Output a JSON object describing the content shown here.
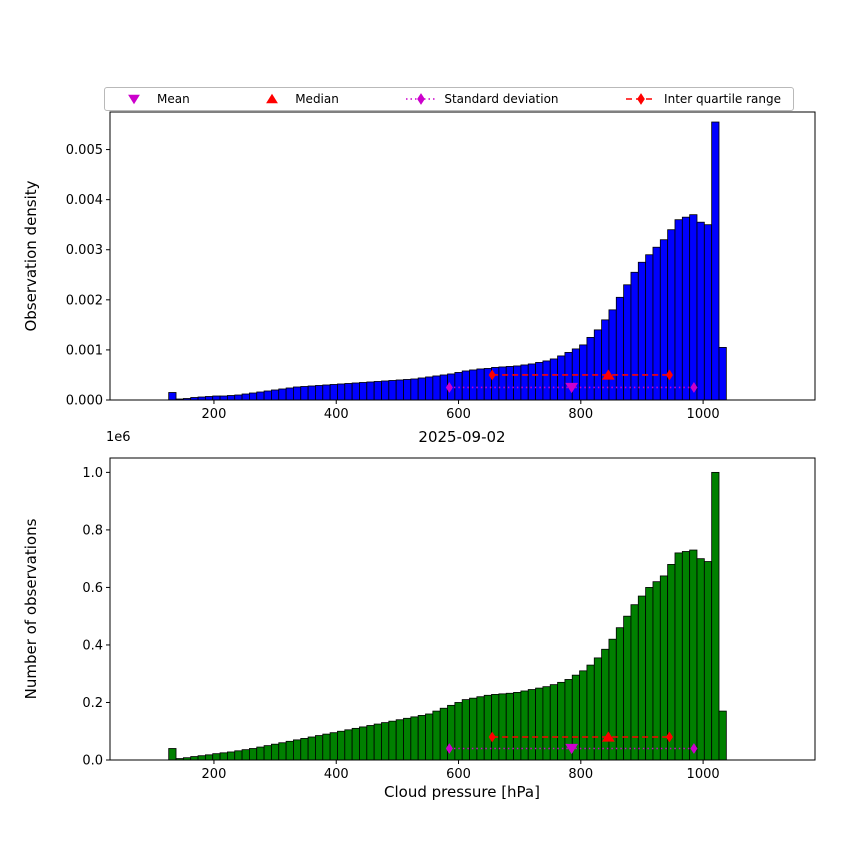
{
  "legend": {
    "items": [
      {
        "label": "Mean",
        "marker": "triangle-down",
        "color": "#cc00cc",
        "line": null
      },
      {
        "label": "Median",
        "marker": "triangle-up",
        "color": "#ff0000",
        "line": null
      },
      {
        "label": "Standard deviation",
        "marker": "diamond",
        "color": "#cc00cc",
        "line": "dotted"
      },
      {
        "label": "Inter quartile range",
        "marker": "diamond",
        "color": "#ff0000",
        "line": "dashed"
      }
    ]
  },
  "chart_data": [
    {
      "type": "bar",
      "title": "",
      "xlabel": "",
      "ylabel": "Observation density",
      "bar_color": "#0000ff",
      "bar_edge": "#000000",
      "bin_start": 126,
      "bin_width": 12,
      "values": [
        0.00015,
        2e-05,
        3e-05,
        5e-05,
        6e-05,
        7e-05,
        8e-05,
        8e-05,
        9e-05,
        0.0001,
        0.00012,
        0.00014,
        0.00016,
        0.00018,
        0.0002,
        0.00022,
        0.00024,
        0.00026,
        0.00027,
        0.00028,
        0.00029,
        0.0003,
        0.00031,
        0.00032,
        0.00033,
        0.00034,
        0.00035,
        0.00036,
        0.00037,
        0.00038,
        0.00039,
        0.0004,
        0.00041,
        0.00042,
        0.00044,
        0.00046,
        0.00048,
        0.0005,
        0.00052,
        0.00055,
        0.00058,
        0.0006,
        0.00062,
        0.00063,
        0.00065,
        0.00066,
        0.00067,
        0.00068,
        0.0007,
        0.00072,
        0.00075,
        0.00078,
        0.00082,
        0.00088,
        0.00095,
        0.00102,
        0.0011,
        0.00125,
        0.0014,
        0.0016,
        0.0018,
        0.00205,
        0.0023,
        0.00255,
        0.00275,
        0.0029,
        0.00305,
        0.0032,
        0.0034,
        0.0036,
        0.00365,
        0.0037,
        0.00355,
        0.0035,
        0.00555,
        0.00105
      ],
      "xlim": [
        30,
        1183
      ],
      "ylim": [
        0,
        0.00575
      ],
      "xticks": [
        200,
        400,
        600,
        800,
        1000
      ],
      "yticks": [
        0,
        0.001,
        0.002,
        0.003,
        0.004,
        0.005
      ],
      "ytick_labels": [
        "0.000",
        "0.001",
        "0.002",
        "0.003",
        "0.004",
        "0.005"
      ],
      "annotations": {
        "std": {
          "x1": 585,
          "x2": 985,
          "center": 785,
          "y": 0.00025,
          "color": "#cc00cc",
          "style": "dotted"
        },
        "iqr": {
          "x1": 655,
          "x2": 945,
          "center": 845,
          "y": 0.0005,
          "color": "#ff0000",
          "style": "dashed"
        }
      }
    },
    {
      "type": "bar",
      "title": "2025-09-02",
      "xlabel": "Cloud pressure [hPa]",
      "ylabel": "Number of observations",
      "offset_text": "1e6",
      "bar_color": "#008000",
      "bar_edge": "#000000",
      "bin_start": 126,
      "bin_width": 12,
      "values": [
        0.04,
        0.005,
        0.008,
        0.012,
        0.015,
        0.018,
        0.022,
        0.025,
        0.028,
        0.032,
        0.036,
        0.04,
        0.045,
        0.05,
        0.055,
        0.06,
        0.065,
        0.07,
        0.075,
        0.08,
        0.085,
        0.09,
        0.095,
        0.1,
        0.105,
        0.11,
        0.115,
        0.12,
        0.125,
        0.13,
        0.135,
        0.14,
        0.145,
        0.15,
        0.155,
        0.16,
        0.17,
        0.18,
        0.19,
        0.2,
        0.21,
        0.215,
        0.22,
        0.225,
        0.228,
        0.23,
        0.232,
        0.235,
        0.24,
        0.245,
        0.25,
        0.255,
        0.262,
        0.27,
        0.28,
        0.295,
        0.31,
        0.33,
        0.355,
        0.385,
        0.42,
        0.46,
        0.5,
        0.54,
        0.57,
        0.6,
        0.62,
        0.64,
        0.68,
        0.72,
        0.725,
        0.73,
        0.7,
        0.69,
        1.0,
        0.17
      ],
      "xlim": [
        30,
        1183
      ],
      "ylim": [
        0,
        1.05
      ],
      "xticks": [
        200,
        400,
        600,
        800,
        1000
      ],
      "yticks": [
        0,
        0.2,
        0.4,
        0.6,
        0.8,
        1.0
      ],
      "ytick_labels": [
        "0.0",
        "0.2",
        "0.4",
        "0.6",
        "0.8",
        "1.0"
      ],
      "annotations": {
        "std": {
          "x1": 585,
          "x2": 985,
          "center": 785,
          "y": 0.04,
          "color": "#cc00cc",
          "style": "dotted"
        },
        "iqr": {
          "x1": 655,
          "x2": 945,
          "center": 845,
          "y": 0.08,
          "color": "#ff0000",
          "style": "dashed"
        }
      }
    }
  ]
}
